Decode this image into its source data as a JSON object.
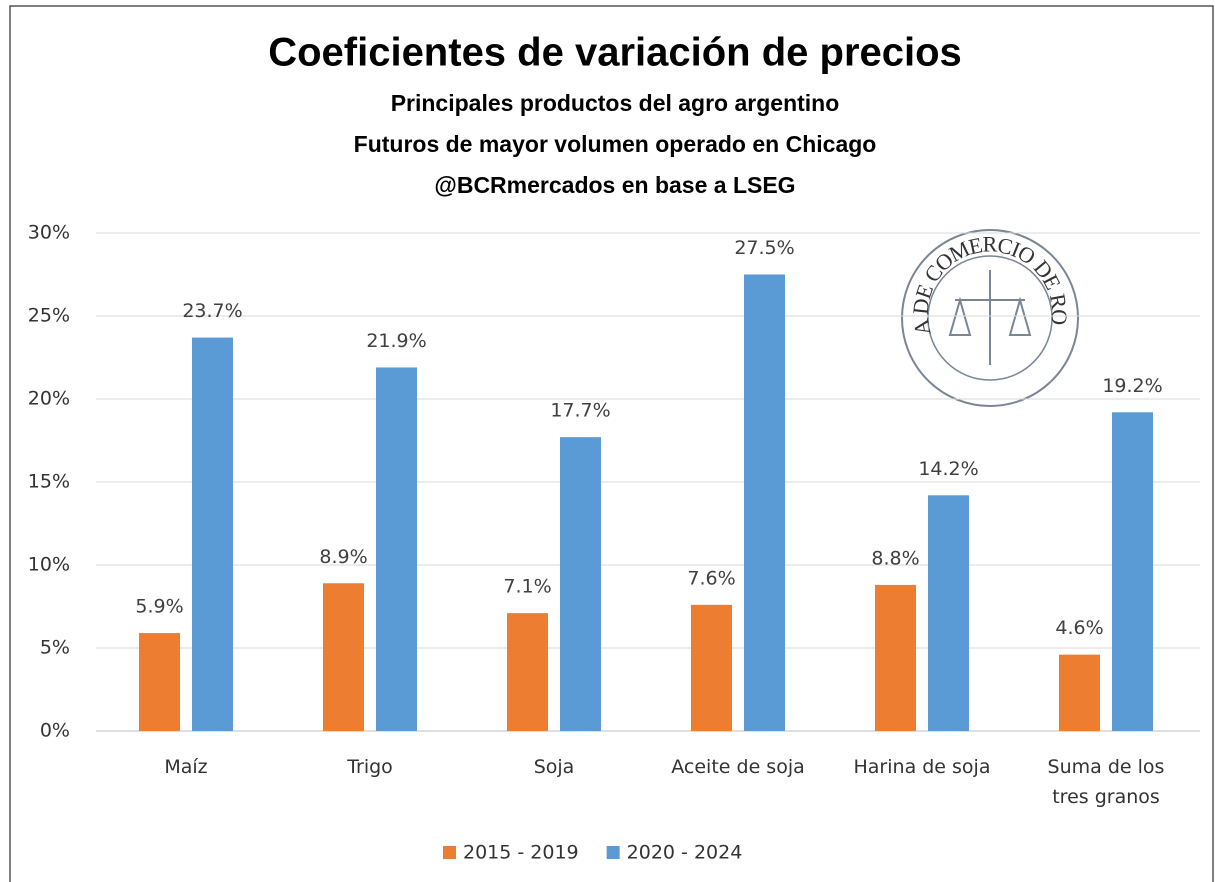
{
  "chart_data": {
    "type": "bar",
    "title": "Coeficientes de variación de precios",
    "subtitle": [
      "Principales productos del agro argentino",
      "Futuros de mayor volumen operado en Chicago",
      "@BCRmercados en base a LSEG"
    ],
    "logo_text": "BOLSA DE COMERCIO DE ROSARIO",
    "categories": [
      "Maíz",
      "Trigo",
      "Soja",
      "Aceite de soja",
      "Harina de soja",
      "Suma de los tres granos"
    ],
    "series": [
      {
        "name": "2015 - 2019",
        "color": "#ed7d31",
        "values": [
          5.9,
          8.9,
          7.1,
          7.6,
          8.8,
          4.6
        ],
        "value_labels": [
          "5.9%",
          "8.9%",
          "7.1%",
          "7.6%",
          "8.8%",
          "4.6%"
        ]
      },
      {
        "name": "2020 - 2024",
        "color": "#5b9bd5",
        "values": [
          23.7,
          21.9,
          17.7,
          27.5,
          14.2,
          19.2
        ],
        "value_labels": [
          "23.7%",
          "21.9%",
          "17.7%",
          "27.5%",
          "14.2%",
          "19.2%"
        ]
      }
    ],
    "ylim": [
      0,
      30
    ],
    "yticks": [
      {
        "value": 0,
        "label": "0%"
      },
      {
        "value": 5,
        "label": "5%"
      },
      {
        "value": 10,
        "label": "10%"
      },
      {
        "value": 15,
        "label": "15%"
      },
      {
        "value": 20,
        "label": "20%"
      },
      {
        "value": 25,
        "label": "25%"
      },
      {
        "value": 30,
        "label": "30%"
      }
    ],
    "grid": true,
    "legend": "bottom"
  }
}
